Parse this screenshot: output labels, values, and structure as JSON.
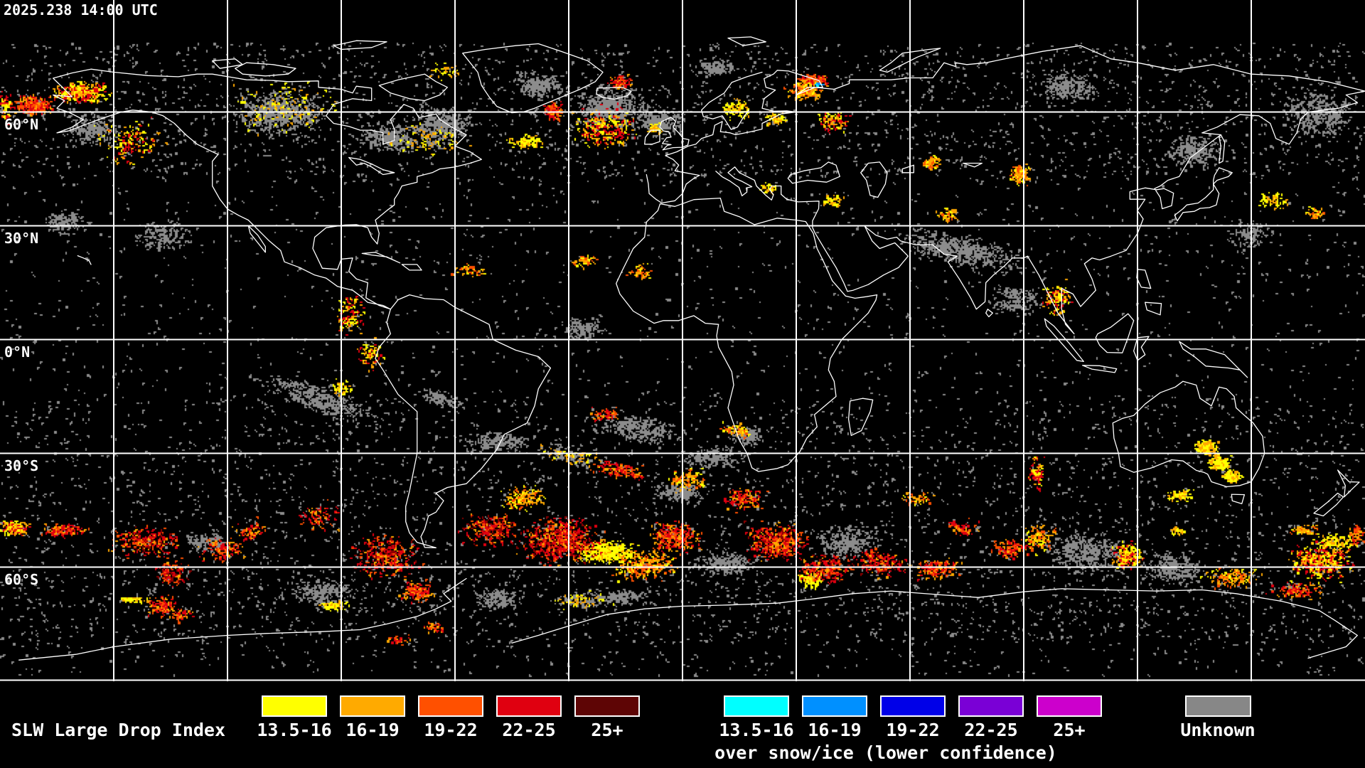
{
  "header": {
    "timestamp": "2025.238 14:00 UTC"
  },
  "map": {
    "lat_labels": [
      "60°N",
      "30°N",
      "0°N",
      "30°S",
      "60°S"
    ]
  },
  "legend": {
    "title": "SLW Large Drop Index",
    "liquid": {
      "ranges": [
        "13.5-16",
        "16-19",
        "19-22",
        "22-25",
        "25+"
      ],
      "colors": [
        "#ffff00",
        "#ffaa00",
        "#ff5000",
        "#e00010",
        "#5e0505"
      ]
    },
    "snow": {
      "ranges": [
        "13.5-16",
        "16-19",
        "19-22",
        "22-25",
        "25+"
      ],
      "colors": [
        "#00ffff",
        "#0090ff",
        "#0000e8",
        "#7a00d6",
        "#cc00cc"
      ],
      "caption": "over snow/ice (lower confidence)"
    },
    "unknown": {
      "label": "Unknown",
      "color": "#878787"
    }
  }
}
